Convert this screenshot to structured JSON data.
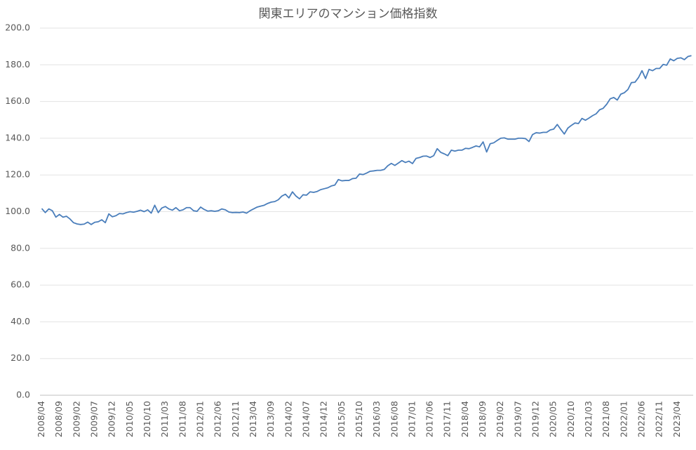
{
  "chart_data": {
    "type": "line",
    "title": "関東エリアのマンション価格指数",
    "categories": [
      "2008/04",
      null,
      null,
      null,
      null,
      "2008/09",
      null,
      null,
      null,
      null,
      "2009/02",
      null,
      null,
      null,
      null,
      "2009/07",
      null,
      null,
      null,
      null,
      "2009/12",
      null,
      null,
      null,
      null,
      "2010/05",
      null,
      null,
      null,
      null,
      "2010/10",
      null,
      null,
      null,
      null,
      "2011/03",
      null,
      null,
      null,
      null,
      "2011/08",
      null,
      null,
      null,
      null,
      "2012/01",
      null,
      null,
      null,
      null,
      "2012/06",
      null,
      null,
      null,
      null,
      "2012/11",
      null,
      null,
      null,
      null,
      "2013/04",
      null,
      null,
      null,
      null,
      "2013/09",
      null,
      null,
      null,
      null,
      "2014/02",
      null,
      null,
      null,
      null,
      "2014/07",
      null,
      null,
      null,
      null,
      "2014/12",
      null,
      null,
      null,
      null,
      "2015/05",
      null,
      null,
      null,
      null,
      "2015/10",
      null,
      null,
      null,
      null,
      "2016/03",
      null,
      null,
      null,
      null,
      "2016/08",
      null,
      null,
      null,
      null,
      "2017/01",
      null,
      null,
      null,
      null,
      "2017/06",
      null,
      null,
      null,
      null,
      "2017/11",
      null,
      null,
      null,
      null,
      "2018/04",
      null,
      null,
      null,
      null,
      "2018/09",
      null,
      null,
      null,
      null,
      "2019/02",
      null,
      null,
      null,
      null,
      "2019/07",
      null,
      null,
      null,
      null,
      "2019/12",
      null,
      null,
      null,
      null,
      "2020/05",
      null,
      null,
      null,
      null,
      "2020/10",
      null,
      null,
      null,
      null,
      "2021/03",
      null,
      null,
      null,
      null,
      "2021/08",
      null,
      null,
      null,
      null,
      "2022/01",
      null,
      null,
      null,
      null,
      "2022/06",
      null,
      null,
      null,
      null,
      "2022/11",
      null,
      null,
      null,
      null,
      "2023/04",
      null,
      null,
      null,
      null
    ],
    "values": [
      101.7,
      99.5,
      101.5,
      100.5,
      97,
      98.5,
      97,
      97.5,
      96,
      94,
      93.3,
      93,
      93.2,
      94.3,
      93,
      94.2,
      94.5,
      95.6,
      94,
      98.8,
      97.2,
      97.8,
      99,
      98.8,
      99.5,
      100,
      99.7,
      100.2,
      100.8,
      100,
      101,
      99.2,
      103.5,
      99.5,
      102,
      102.8,
      101.5,
      100.8,
      102.2,
      100.5,
      101,
      102.2,
      102.2,
      100.5,
      100.2,
      102.5,
      101.2,
      100.3,
      100.5,
      100.2,
      100.5,
      101.5,
      101,
      99.8,
      99.5,
      99.6,
      99.5,
      99.8,
      99.2,
      100.5,
      101.5,
      102.5,
      103,
      103.5,
      104.5,
      105.2,
      105.5,
      106.5,
      108.5,
      109.5,
      107.5,
      110.8,
      108.5,
      107,
      109.2,
      109,
      110.8,
      110.5,
      111,
      112,
      112.5,
      113,
      114,
      114.5,
      117.5,
      116.8,
      117,
      117,
      118,
      118.2,
      120.5,
      120.2,
      121,
      122,
      122.2,
      122.5,
      122.5,
      123,
      125,
      126.3,
      125.2,
      126.5,
      127.8,
      126.8,
      127.5,
      126.2,
      129,
      129.5,
      130.2,
      130.3,
      129.5,
      130.5,
      134.3,
      132.3,
      131.5,
      130.5,
      133.5,
      133,
      133.5,
      133.5,
      134.5,
      134.3,
      135,
      135.8,
      135.3,
      138,
      132.5,
      137,
      137.5,
      138.8,
      140,
      140.2,
      139.5,
      139.5,
      139.5,
      140,
      140,
      139.8,
      138.2,
      142,
      143,
      142.8,
      143.2,
      143.2,
      144.5,
      145,
      147.5,
      144.8,
      142.3,
      145.5,
      147,
      148.3,
      148,
      150.8,
      149.8,
      151,
      152.3,
      153.3,
      155.5,
      156.3,
      158.5,
      161.5,
      162.2,
      160.8,
      164,
      164.8,
      166.5,
      170.3,
      170.5,
      173,
      176.8,
      172.5,
      177.5,
      176.8,
      178,
      178,
      180.2,
      179.8,
      183.2,
      182.2,
      183.5,
      183.8,
      182.8,
      184.5,
      185
    ],
    "color": "#4a7ebb",
    "ylim": [
      0,
      200
    ],
    "yticks": [
      {
        "value": 0,
        "label": "0.0"
      },
      {
        "value": 20,
        "label": "20.0"
      },
      {
        "value": 40,
        "label": "40.0"
      },
      {
        "value": 60,
        "label": "60.0"
      },
      {
        "value": 80,
        "label": "80.0"
      },
      {
        "value": 100,
        "label": "100.0"
      },
      {
        "value": 120,
        "label": "120.0"
      },
      {
        "value": 140,
        "label": "140.0"
      },
      {
        "value": 160,
        "label": "160.0"
      },
      {
        "value": 180,
        "label": "180.0"
      },
      {
        "value": 200,
        "label": "200.0"
      }
    ],
    "grid": true
  }
}
